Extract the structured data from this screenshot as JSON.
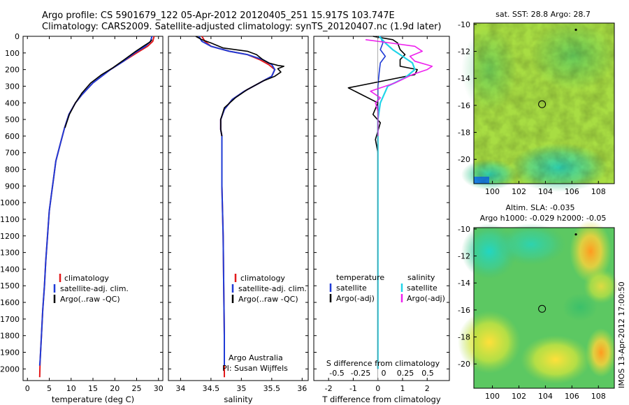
{
  "title_line1": "Argo profile: CS 5901679_122 05-Apr-2012 20120405_251 15.917S 103.747E",
  "title_line2": "Climatology: CARS2009. Satellite-adjusted climatology: synTS_20120407.nc (1.9d later)",
  "colors": {
    "clim": "#e31a1c",
    "sat": "#1f3bd6",
    "argo": "#000000",
    "sat_s": "#22d4e8",
    "argo_s": "#ee22ee"
  },
  "panels": {
    "temperature": {
      "xlabel": "temperature (deg C)",
      "legend": [
        "climatology",
        "satellite-adj. clim.",
        "Argo(..raw -QC)"
      ]
    },
    "salinity": {
      "xlabel": "salinity",
      "legend": [
        "climatology",
        "satellite-adj. clim.",
        "Argo(..raw -QC)"
      ],
      "credit1": "Argo Australia",
      "credit2": "PI: Susan Wijffels"
    },
    "difference": {
      "xlabel_top": "S difference from climatology",
      "xlabel": "T difference from climatology",
      "legend_t_title": "temperature",
      "legend_s_title": "salinity",
      "legend_t": [
        "satellite",
        "Argo(-adj)"
      ],
      "legend_s": [
        "satellite",
        "Argo(-adj)"
      ]
    }
  },
  "maps": {
    "sst_title": "sat. SST: 28.8 Argo: 28.7",
    "sla_title1": "Altim. SLA: -0.035",
    "sla_title2": "Argo h1000: -0.029 h2000: -0.05",
    "lon_ticks": [
      "100",
      "102",
      "104",
      "106",
      "108"
    ],
    "lat_ticks": [
      "-10",
      "-12",
      "-14",
      "-16",
      "-18",
      "-20"
    ],
    "float_lon": 103.747,
    "float_lat": -15.917
  },
  "stamp": "IMOS 13-Apr-2012 17:00:50",
  "chart_data": [
    {
      "type": "line",
      "name": "temperature profile",
      "xlabel": "temperature (deg C)",
      "ylabel": "",
      "xlim": [
        -1,
        31
      ],
      "ylim": [
        2070,
        0
      ],
      "x_ticks": [
        0,
        5,
        10,
        15,
        20,
        25,
        30
      ],
      "y_ticks": [
        0,
        100,
        200,
        300,
        400,
        500,
        600,
        700,
        800,
        900,
        1000,
        1100,
        1200,
        1300,
        1400,
        1500,
        1600,
        1700,
        1800,
        1900,
        2000
      ],
      "series": [
        {
          "name": "climatology",
          "points": [
            [
              29,
              0
            ],
            [
              28.7,
              30
            ],
            [
              27.5,
              60
            ],
            [
              25,
              100
            ],
            [
              22,
              150
            ],
            [
              19,
              200
            ],
            [
              15,
              280
            ],
            [
              12.5,
              350
            ],
            [
              11,
              400
            ],
            [
              9.5,
              470
            ],
            [
              8.5,
              550
            ],
            [
              7.5,
              650
            ],
            [
              6.5,
              750
            ],
            [
              6,
              850
            ],
            [
              5.5,
              950
            ],
            [
              5,
              1050
            ],
            [
              4.6,
              1200
            ],
            [
              4.2,
              1350
            ],
            [
              3.9,
              1500
            ],
            [
              3.5,
              1650
            ],
            [
              3.2,
              1800
            ],
            [
              2.9,
              1950
            ],
            [
              2.8,
              2050
            ]
          ]
        },
        {
          "name": "satellite-adj. clim.",
          "points": [
            [
              28.5,
              0
            ],
            [
              28.2,
              30
            ],
            [
              27,
              60
            ],
            [
              24.5,
              100
            ],
            [
              22,
              150
            ],
            [
              19,
              200
            ],
            [
              15,
              280
            ],
            [
              12.5,
              350
            ],
            [
              11,
              400
            ],
            [
              9.5,
              470
            ],
            [
              8.5,
              550
            ],
            [
              7.5,
              650
            ],
            [
              6.5,
              750
            ],
            [
              6,
              850
            ],
            [
              5.5,
              950
            ],
            [
              5,
              1050
            ],
            [
              4.6,
              1200
            ],
            [
              4.2,
              1350
            ],
            [
              3.9,
              1500
            ],
            [
              3.5,
              1650
            ],
            [
              3.2,
              1800
            ],
            [
              2.9,
              1950
            ],
            [
              2.8,
              1980
            ]
          ]
        },
        {
          "name": "Argo(..raw -QC)",
          "points": [
            [
              28.5,
              20
            ],
            [
              28,
              35
            ],
            [
              26.5,
              60
            ],
            [
              24.8,
              90
            ],
            [
              22.2,
              140
            ],
            [
              19.5,
              190
            ],
            [
              17,
              230
            ],
            [
              14.5,
              280
            ],
            [
              12.5,
              340
            ],
            [
              11,
              400
            ],
            [
              9.6,
              470
            ],
            [
              8.6,
              550
            ]
          ]
        }
      ]
    },
    {
      "type": "line",
      "name": "salinity profile",
      "xlabel": "salinity",
      "xlim": [
        33.8,
        36.1
      ],
      "ylim": [
        2070,
        0
      ],
      "x_ticks": [
        34,
        34.5,
        35,
        35.5,
        36
      ],
      "series": [
        {
          "name": "climatology",
          "points": [
            [
              34.35,
              0
            ],
            [
              34.4,
              30
            ],
            [
              34.5,
              60
            ],
            [
              34.8,
              90
            ],
            [
              35.1,
              110
            ],
            [
              35.3,
              140
            ],
            [
              35.45,
              170
            ],
            [
              35.55,
              200
            ],
            [
              35.5,
              240
            ],
            [
              35.3,
              280
            ],
            [
              35.05,
              330
            ],
            [
              34.85,
              380
            ],
            [
              34.72,
              440
            ],
            [
              34.66,
              500
            ],
            [
              34.66,
              560
            ],
            [
              34.68,
              600
            ],
            [
              34.68,
              700
            ],
            [
              34.68,
              900
            ],
            [
              34.7,
              1200
            ],
            [
              34.71,
              1500
            ],
            [
              34.72,
              1800
            ],
            [
              34.72,
              2000
            ],
            [
              34.72,
              2050
            ]
          ]
        },
        {
          "name": "satellite-adj. clim.",
          "points": [
            [
              34.3,
              0
            ],
            [
              34.35,
              30
            ],
            [
              34.5,
              60
            ],
            [
              34.8,
              90
            ],
            [
              35.1,
              110
            ],
            [
              35.35,
              140
            ],
            [
              35.5,
              170
            ],
            [
              35.55,
              200
            ],
            [
              35.5,
              240
            ],
            [
              35.3,
              280
            ],
            [
              35.05,
              330
            ],
            [
              34.85,
              380
            ],
            [
              34.72,
              440
            ],
            [
              34.66,
              500
            ],
            [
              34.66,
              560
            ],
            [
              34.68,
              600
            ],
            [
              34.68,
              700
            ],
            [
              34.68,
              900
            ],
            [
              34.7,
              1200
            ],
            [
              34.71,
              1500
            ],
            [
              34.72,
              1800
            ],
            [
              34.72,
              1980
            ]
          ]
        },
        {
          "name": "Argo(..raw -QC)",
          "points": [
            [
              34.25,
              0
            ],
            [
              34.35,
              20
            ],
            [
              34.5,
              40
            ],
            [
              34.7,
              70
            ],
            [
              35.1,
              90
            ],
            [
              35.25,
              110
            ],
            [
              35.35,
              140
            ],
            [
              35.45,
              160
            ],
            [
              35.6,
              175
            ],
            [
              35.7,
              180
            ],
            [
              35.6,
              195
            ],
            [
              35.65,
              215
            ],
            [
              35.55,
              240
            ],
            [
              35.35,
              270
            ],
            [
              35.1,
              320
            ],
            [
              34.9,
              370
            ],
            [
              34.72,
              430
            ],
            [
              34.66,
              500
            ],
            [
              34.66,
              560
            ],
            [
              34.68,
              600
            ]
          ]
        }
      ]
    },
    {
      "type": "line",
      "name": "difference from climatology",
      "xlabel": "T difference from climatology",
      "xlim": [
        -2.6,
        2.9
      ],
      "x_ticks": [
        -2,
        -1,
        0,
        1,
        2
      ],
      "s_axis_ticks": [
        "-0.5",
        "-0.25",
        "0",
        "0.25",
        "0.5"
      ],
      "ylim": [
        2070,
        0
      ],
      "series": [
        {
          "name": "temperature satellite",
          "points": [
            [
              0.1,
              0
            ],
            [
              0.2,
              40
            ],
            [
              0.1,
              80
            ],
            [
              0.3,
              120
            ],
            [
              0.1,
              160
            ],
            [
              0.05,
              220
            ],
            [
              0,
              300
            ],
            [
              0,
              500
            ],
            [
              0,
              1000
            ],
            [
              0,
              1500
            ],
            [
              0,
              2000
            ]
          ]
        },
        {
          "name": "temperature Argo(-adj)",
          "points": [
            [
              -0.2,
              0
            ],
            [
              0.6,
              20
            ],
            [
              0.8,
              40
            ],
            [
              0.9,
              80
            ],
            [
              1.1,
              110
            ],
            [
              0.9,
              140
            ],
            [
              0.9,
              180
            ],
            [
              1.6,
              200
            ],
            [
              1.5,
              230
            ],
            [
              0.5,
              260
            ],
            [
              -1.2,
              310
            ],
            [
              -0.8,
              340
            ],
            [
              0,
              400
            ],
            [
              -0.2,
              470
            ],
            [
              0.1,
              520
            ],
            [
              -0.1,
              620
            ],
            [
              0,
              700
            ]
          ]
        },
        {
          "name": "salinity satellite",
          "points": [
            [
              0.05,
              0
            ],
            [
              0.3,
              40
            ],
            [
              0.6,
              80
            ],
            [
              1.0,
              120
            ],
            [
              1.4,
              160
            ],
            [
              1.5,
              200
            ],
            [
              1.1,
              250
            ],
            [
              0.4,
              300
            ],
            [
              0.1,
              400
            ],
            [
              0,
              500
            ],
            [
              0,
              1000
            ],
            [
              0,
              1500
            ],
            [
              0,
              2000
            ]
          ]
        },
        {
          "name": "salinity Argo(-adj)",
          "points": [
            [
              -0.5,
              20
            ],
            [
              0.5,
              40
            ],
            [
              1.5,
              60
            ],
            [
              1.8,
              90
            ],
            [
              1.3,
              120
            ],
            [
              1.5,
              150
            ],
            [
              2.2,
              180
            ],
            [
              2.0,
              200
            ],
            [
              1.4,
              230
            ],
            [
              0.7,
              280
            ],
            [
              -0.3,
              330
            ],
            [
              0.1,
              370
            ],
            [
              -0.1,
              400
            ],
            [
              0,
              450
            ],
            [
              0,
              600
            ]
          ]
        }
      ]
    }
  ]
}
